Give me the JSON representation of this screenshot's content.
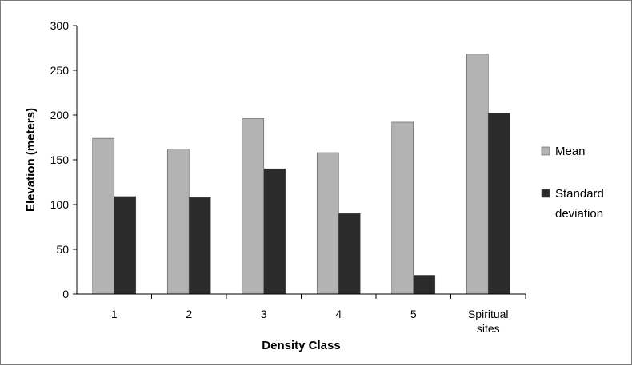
{
  "chart_data": {
    "type": "bar",
    "title": "",
    "xlabel": "Density Class",
    "ylabel": "Elevation (meters)",
    "ylim": [
      0,
      300
    ],
    "yticks": [
      0,
      50,
      100,
      150,
      200,
      250,
      300
    ],
    "categories": [
      [
        "1"
      ],
      [
        "2"
      ],
      [
        "3"
      ],
      [
        "4"
      ],
      [
        "5"
      ],
      [
        "Spiritual",
        "sites"
      ]
    ],
    "series": [
      {
        "name": "Mean",
        "color": "#b3b3b3",
        "values": [
          174,
          162,
          196,
          158,
          192,
          268
        ]
      },
      {
        "name": "Standard deviation",
        "legend_lines": [
          "Standard",
          "deviation"
        ],
        "color": "#2b2b2b",
        "values": [
          109,
          108,
          140,
          90,
          21,
          202
        ]
      }
    ],
    "grid": false,
    "legend": "right"
  }
}
